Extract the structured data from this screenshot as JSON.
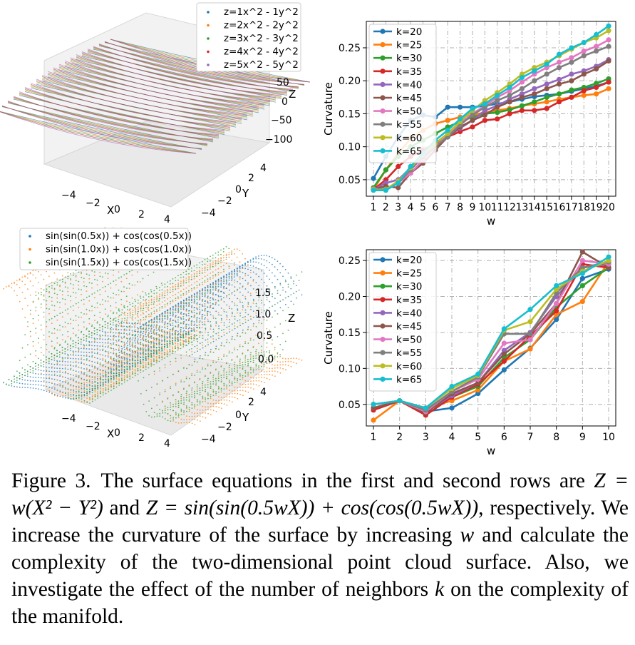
{
  "colors": [
    "#1f77b4",
    "#ff7f0e",
    "#2ca02c",
    "#d62728",
    "#9467bd",
    "#8c564b",
    "#e377c2",
    "#7f7f7f",
    "#bcbd22",
    "#17becf"
  ],
  "surface_plots": [
    {
      "legend": [
        "z=1x^2 - 1y^2",
        "z=2x^2 - 2y^2",
        "z=3x^2 - 3y^2",
        "z=4x^2 - 4y^2",
        "z=5x^2 - 5y^2"
      ],
      "x_ticks": [
        "−4",
        "−2",
        "0",
        "2",
        "4"
      ],
      "y_ticks": [
        "−4",
        "−2",
        "0",
        "2",
        "4"
      ],
      "z_ticks": [
        "50",
        "0",
        "−50",
        "−100"
      ],
      "x_label": "X",
      "y_label": "Y",
      "z_label": "Z"
    },
    {
      "legend": [
        "sin(sin(0.5x)) + cos(cos(0.5x))",
        "sin(sin(1.0x)) + cos(cos(1.0x))",
        "sin(sin(1.5x)) + cos(cos(1.5x))"
      ],
      "x_ticks": [
        "−4",
        "−2",
        "0",
        "2",
        "4"
      ],
      "y_ticks": [
        "−4",
        "−2",
        "0",
        "2",
        "4"
      ],
      "z_ticks": [
        "1.5",
        "1.0",
        "0.5",
        "0.0"
      ],
      "x_label": "X",
      "y_label": "Y",
      "z_label": "Z"
    }
  ],
  "chart_data": [
    {
      "type": "line",
      "x": [
        1,
        2,
        3,
        4,
        5,
        6,
        7,
        8,
        9,
        10,
        11,
        12,
        13,
        14,
        15,
        16,
        17,
        18,
        19,
        20
      ],
      "x_tick_labels": [
        "1",
        "2",
        "3",
        "4",
        "5",
        "6",
        "7",
        "8",
        "9",
        "10",
        "11",
        "12",
        "13",
        "14",
        "15",
        "16",
        "17",
        "18",
        "19",
        "20"
      ],
      "xlabel": "w",
      "ylabel": "Curvature",
      "ylim": [
        0.025,
        0.29
      ],
      "y_ticks": [
        0.05,
        0.1,
        0.15,
        0.2,
        0.25
      ],
      "y_tick_labels": [
        "0.05",
        "0.10",
        "0.15",
        "0.20",
        "0.25"
      ],
      "legend_position": "top-left",
      "series": [
        {
          "name": "k=20",
          "values": [
            0.052,
            0.085,
            0.115,
            0.14,
            0.148,
            0.145,
            0.16,
            0.16,
            0.16,
            0.162,
            0.165,
            0.168,
            0.172,
            0.176,
            0.178,
            0.18,
            0.184,
            0.188,
            0.192,
            0.198
          ]
        },
        {
          "name": "k=25",
          "values": [
            0.035,
            0.065,
            0.09,
            0.112,
            0.125,
            0.135,
            0.14,
            0.145,
            0.148,
            0.152,
            0.155,
            0.158,
            0.162,
            0.165,
            0.168,
            0.172,
            0.175,
            0.178,
            0.18,
            0.188
          ]
        },
        {
          "name": "k=30",
          "values": [
            0.038,
            0.065,
            0.085,
            0.1,
            0.11,
            0.12,
            0.13,
            0.138,
            0.145,
            0.15,
            0.152,
            0.156,
            0.162,
            0.168,
            0.175,
            0.18,
            0.186,
            0.19,
            0.196,
            0.203
          ]
        },
        {
          "name": "k=35",
          "values": [
            0.035,
            0.05,
            0.07,
            0.085,
            0.095,
            0.105,
            0.115,
            0.123,
            0.13,
            0.14,
            0.142,
            0.15,
            0.155,
            0.155,
            0.158,
            0.168,
            0.175,
            0.185,
            0.19,
            0.198
          ]
        },
        {
          "name": "k=40",
          "values": [
            0.035,
            0.045,
            0.05,
            0.068,
            0.082,
            0.1,
            0.115,
            0.128,
            0.14,
            0.155,
            0.162,
            0.172,
            0.18,
            0.188,
            0.195,
            0.202,
            0.21,
            0.215,
            0.222,
            0.232
          ]
        },
        {
          "name": "k=45",
          "values": [
            0.036,
            0.04,
            0.038,
            0.06,
            0.075,
            0.095,
            0.115,
            0.13,
            0.14,
            0.148,
            0.16,
            0.168,
            0.175,
            0.18,
            0.188,
            0.195,
            0.2,
            0.21,
            0.218,
            0.23
          ]
        },
        {
          "name": "k=50",
          "values": [
            0.036,
            0.035,
            0.045,
            0.06,
            0.08,
            0.1,
            0.118,
            0.135,
            0.15,
            0.162,
            0.175,
            0.185,
            0.198,
            0.21,
            0.22,
            0.228,
            0.235,
            0.245,
            0.252,
            0.262
          ]
        },
        {
          "name": "k=55",
          "values": [
            0.035,
            0.036,
            0.045,
            0.065,
            0.085,
            0.1,
            0.115,
            0.133,
            0.148,
            0.16,
            0.17,
            0.178,
            0.188,
            0.2,
            0.21,
            0.22,
            0.228,
            0.238,
            0.245,
            0.252
          ]
        },
        {
          "name": "k=60",
          "values": [
            0.035,
            0.035,
            0.048,
            0.068,
            0.088,
            0.105,
            0.12,
            0.138,
            0.155,
            0.17,
            0.182,
            0.195,
            0.21,
            0.22,
            0.228,
            0.238,
            0.248,
            0.258,
            0.265,
            0.276
          ]
        },
        {
          "name": "k=65",
          "values": [
            0.034,
            0.034,
            0.045,
            0.07,
            0.09,
            0.11,
            0.125,
            0.142,
            0.158,
            0.165,
            0.178,
            0.19,
            0.205,
            0.215,
            0.225,
            0.24,
            0.25,
            0.258,
            0.27,
            0.283
          ]
        }
      ]
    },
    {
      "type": "line",
      "x": [
        1,
        2,
        3,
        4,
        5,
        6,
        7,
        8,
        9,
        10
      ],
      "x_tick_labels": [
        "1",
        "2",
        "3",
        "4",
        "5",
        "6",
        "7",
        "8",
        "9",
        "10"
      ],
      "xlabel": "w",
      "ylabel": "Curvature",
      "ylim": [
        0.02,
        0.265
      ],
      "y_ticks": [
        0.05,
        0.1,
        0.15,
        0.2,
        0.25
      ],
      "y_tick_labels": [
        "0.05",
        "0.10",
        "0.15",
        "0.20",
        "0.25"
      ],
      "legend_position": "top-left",
      "series": [
        {
          "name": "k=20",
          "values": [
            0.05,
            0.055,
            0.04,
            0.045,
            0.065,
            0.098,
            0.128,
            0.168,
            0.225,
            0.238
          ]
        },
        {
          "name": "k=25",
          "values": [
            0.028,
            0.055,
            0.045,
            0.055,
            0.07,
            0.11,
            0.127,
            0.175,
            0.193,
            0.248
          ]
        },
        {
          "name": "k=30",
          "values": [
            0.045,
            0.055,
            0.04,
            0.06,
            0.075,
            0.115,
            0.14,
            0.185,
            0.215,
            0.24
          ]
        },
        {
          "name": "k=35",
          "values": [
            0.042,
            0.055,
            0.035,
            0.06,
            0.078,
            0.11,
            0.145,
            0.18,
            0.245,
            0.24
          ]
        },
        {
          "name": "k=40",
          "values": [
            0.045,
            0.055,
            0.04,
            0.062,
            0.08,
            0.125,
            0.15,
            0.2,
            0.24,
            0.245
          ]
        },
        {
          "name": "k=45",
          "values": [
            0.045,
            0.055,
            0.038,
            0.065,
            0.08,
            0.12,
            0.148,
            0.19,
            0.262,
            0.24
          ]
        },
        {
          "name": "k=50",
          "values": [
            0.05,
            0.055,
            0.04,
            0.068,
            0.085,
            0.135,
            0.14,
            0.19,
            0.25,
            0.245
          ]
        },
        {
          "name": "k=55",
          "values": [
            0.05,
            0.055,
            0.042,
            0.068,
            0.088,
            0.148,
            0.148,
            0.205,
            0.24,
            0.248
          ]
        },
        {
          "name": "k=60",
          "values": [
            0.05,
            0.055,
            0.045,
            0.072,
            0.09,
            0.153,
            0.165,
            0.21,
            0.235,
            0.25
          ]
        },
        {
          "name": "k=65",
          "values": [
            0.05,
            0.055,
            0.045,
            0.075,
            0.092,
            0.155,
            0.182,
            0.215,
            0.232,
            0.255
          ]
        }
      ]
    }
  ],
  "caption": {
    "label": "Figure 3.",
    "t1": "The surface equations in the first and second rows are ",
    "eq1": "Z = w(X² − Y²)",
    "t2": " and ",
    "eq2": "Z = sin(sin(0.5wX)) + cos(cos(0.5wX))",
    "t3": ", respectively. We increase the curvature of the surface by increasing ",
    "w": "w",
    "t4": " and calculate the complexity of the two-dimensional point cloud surface. Also, we investigate the effect of the number of neighbors ",
    "k": "k",
    "t5": " on the complexity of the manifold."
  }
}
